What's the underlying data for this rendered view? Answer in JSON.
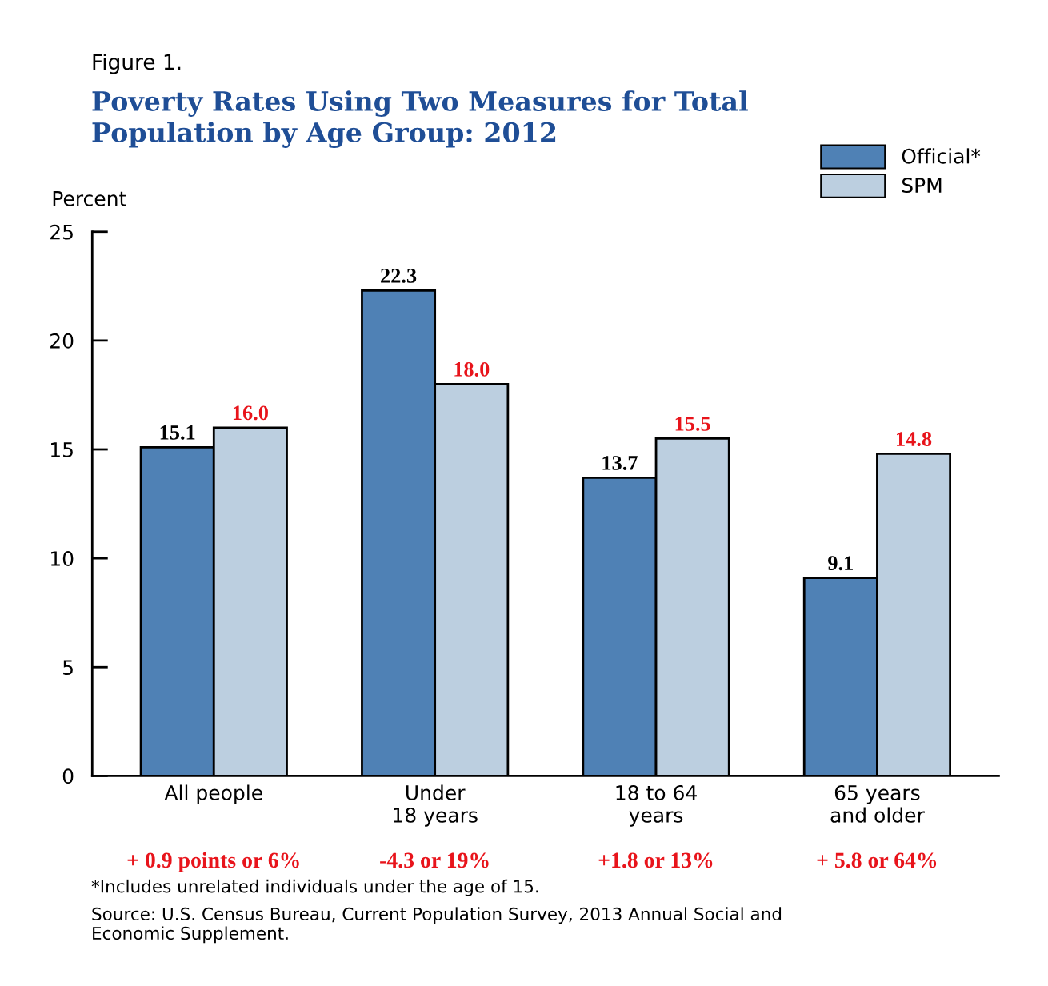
{
  "chart_data": {
    "type": "bar",
    "subtitle": "Figure 1.",
    "title": "Poverty Rates Using Two Measures for Total\nPopulation by Age Group: 2012",
    "ylabel": "Percent",
    "categories": [
      "All people",
      "Under\n18 years",
      "18 to 64\nyears",
      "65 years\nand older"
    ],
    "series": [
      {
        "name": "Official*",
        "color": "#4f81b5",
        "values": [
          15.1,
          22.3,
          13.7,
          9.1
        ],
        "value_labels": [
          "15.1",
          "22.3",
          "13.7",
          "9.1"
        ]
      },
      {
        "name": "SPM",
        "color": "#bccfe0",
        "values": [
          16.0,
          18.0,
          15.5,
          14.8
        ],
        "value_labels": [
          "16.0",
          "18.0",
          "15.5",
          "14.8"
        ]
      }
    ],
    "ylim": [
      0,
      25
    ],
    "yticks": [
      0,
      5,
      10,
      15,
      20,
      25
    ],
    "grid": false,
    "legend": "top right",
    "annotations": [
      "+ 0.9 points or 6%",
      "-4.3 or 19%",
      "+1.8 or 13%",
      "+ 5.8 or 64%",
      "*Includes unrelated individuals under the age of 15.",
      "Source: U.S. Census Bureau, Current Population Survey, 2013 Annual Social and\nEconomic Supplement."
    ]
  }
}
